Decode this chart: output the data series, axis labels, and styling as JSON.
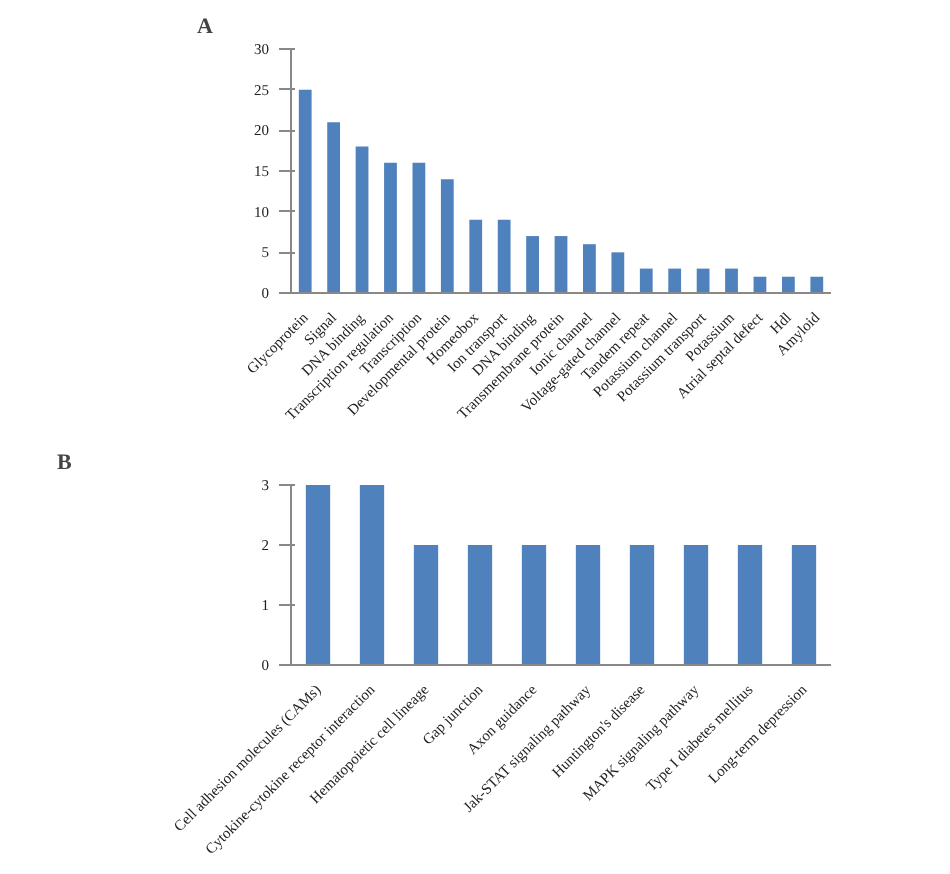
{
  "chart_data": [
    {
      "type": "bar",
      "title": "A",
      "categories": [
        "Glycoprotein",
        "Signal",
        "DNA binding",
        "Transcription regulation",
        "Transcription",
        "Developmental protein",
        "Homeobox",
        "Ion transport",
        "DNA binding",
        "Transmembrane protein",
        "Ionic channel",
        "Voltage-gated channel",
        "Tandem repeat",
        "Potassium channel",
        "Potassium transport",
        "Potassium",
        "Atrial septal defect",
        "Hdl",
        "Amyloid"
      ],
      "values": [
        25,
        21,
        18,
        16,
        16,
        14,
        9,
        9,
        7,
        7,
        6,
        5,
        3,
        3,
        3,
        3,
        2,
        2,
        2
      ],
      "color": "#4f81bd",
      "ylim": [
        0,
        30
      ],
      "yticks": [
        0,
        5,
        10,
        15,
        20,
        25,
        30
      ]
    },
    {
      "type": "bar",
      "title": "B",
      "categories": [
        "Cell adhesion molecules (CAMs)",
        "Cytokine-cytokine receptor interaction",
        "Hematopoietic cell lineage",
        "Gap junction",
        "Axon guidance",
        "Jak-STAT signaling pathway",
        "Huntington's disease",
        "MAPK signaling pathway",
        "Type I diabetes mellitus",
        "Long-term depression"
      ],
      "values": [
        3,
        3,
        2,
        2,
        2,
        2,
        2,
        2,
        2,
        2
      ],
      "color": "#4f81bd",
      "ylim": [
        0,
        3
      ],
      "yticks": [
        0,
        1,
        2,
        3
      ]
    }
  ]
}
